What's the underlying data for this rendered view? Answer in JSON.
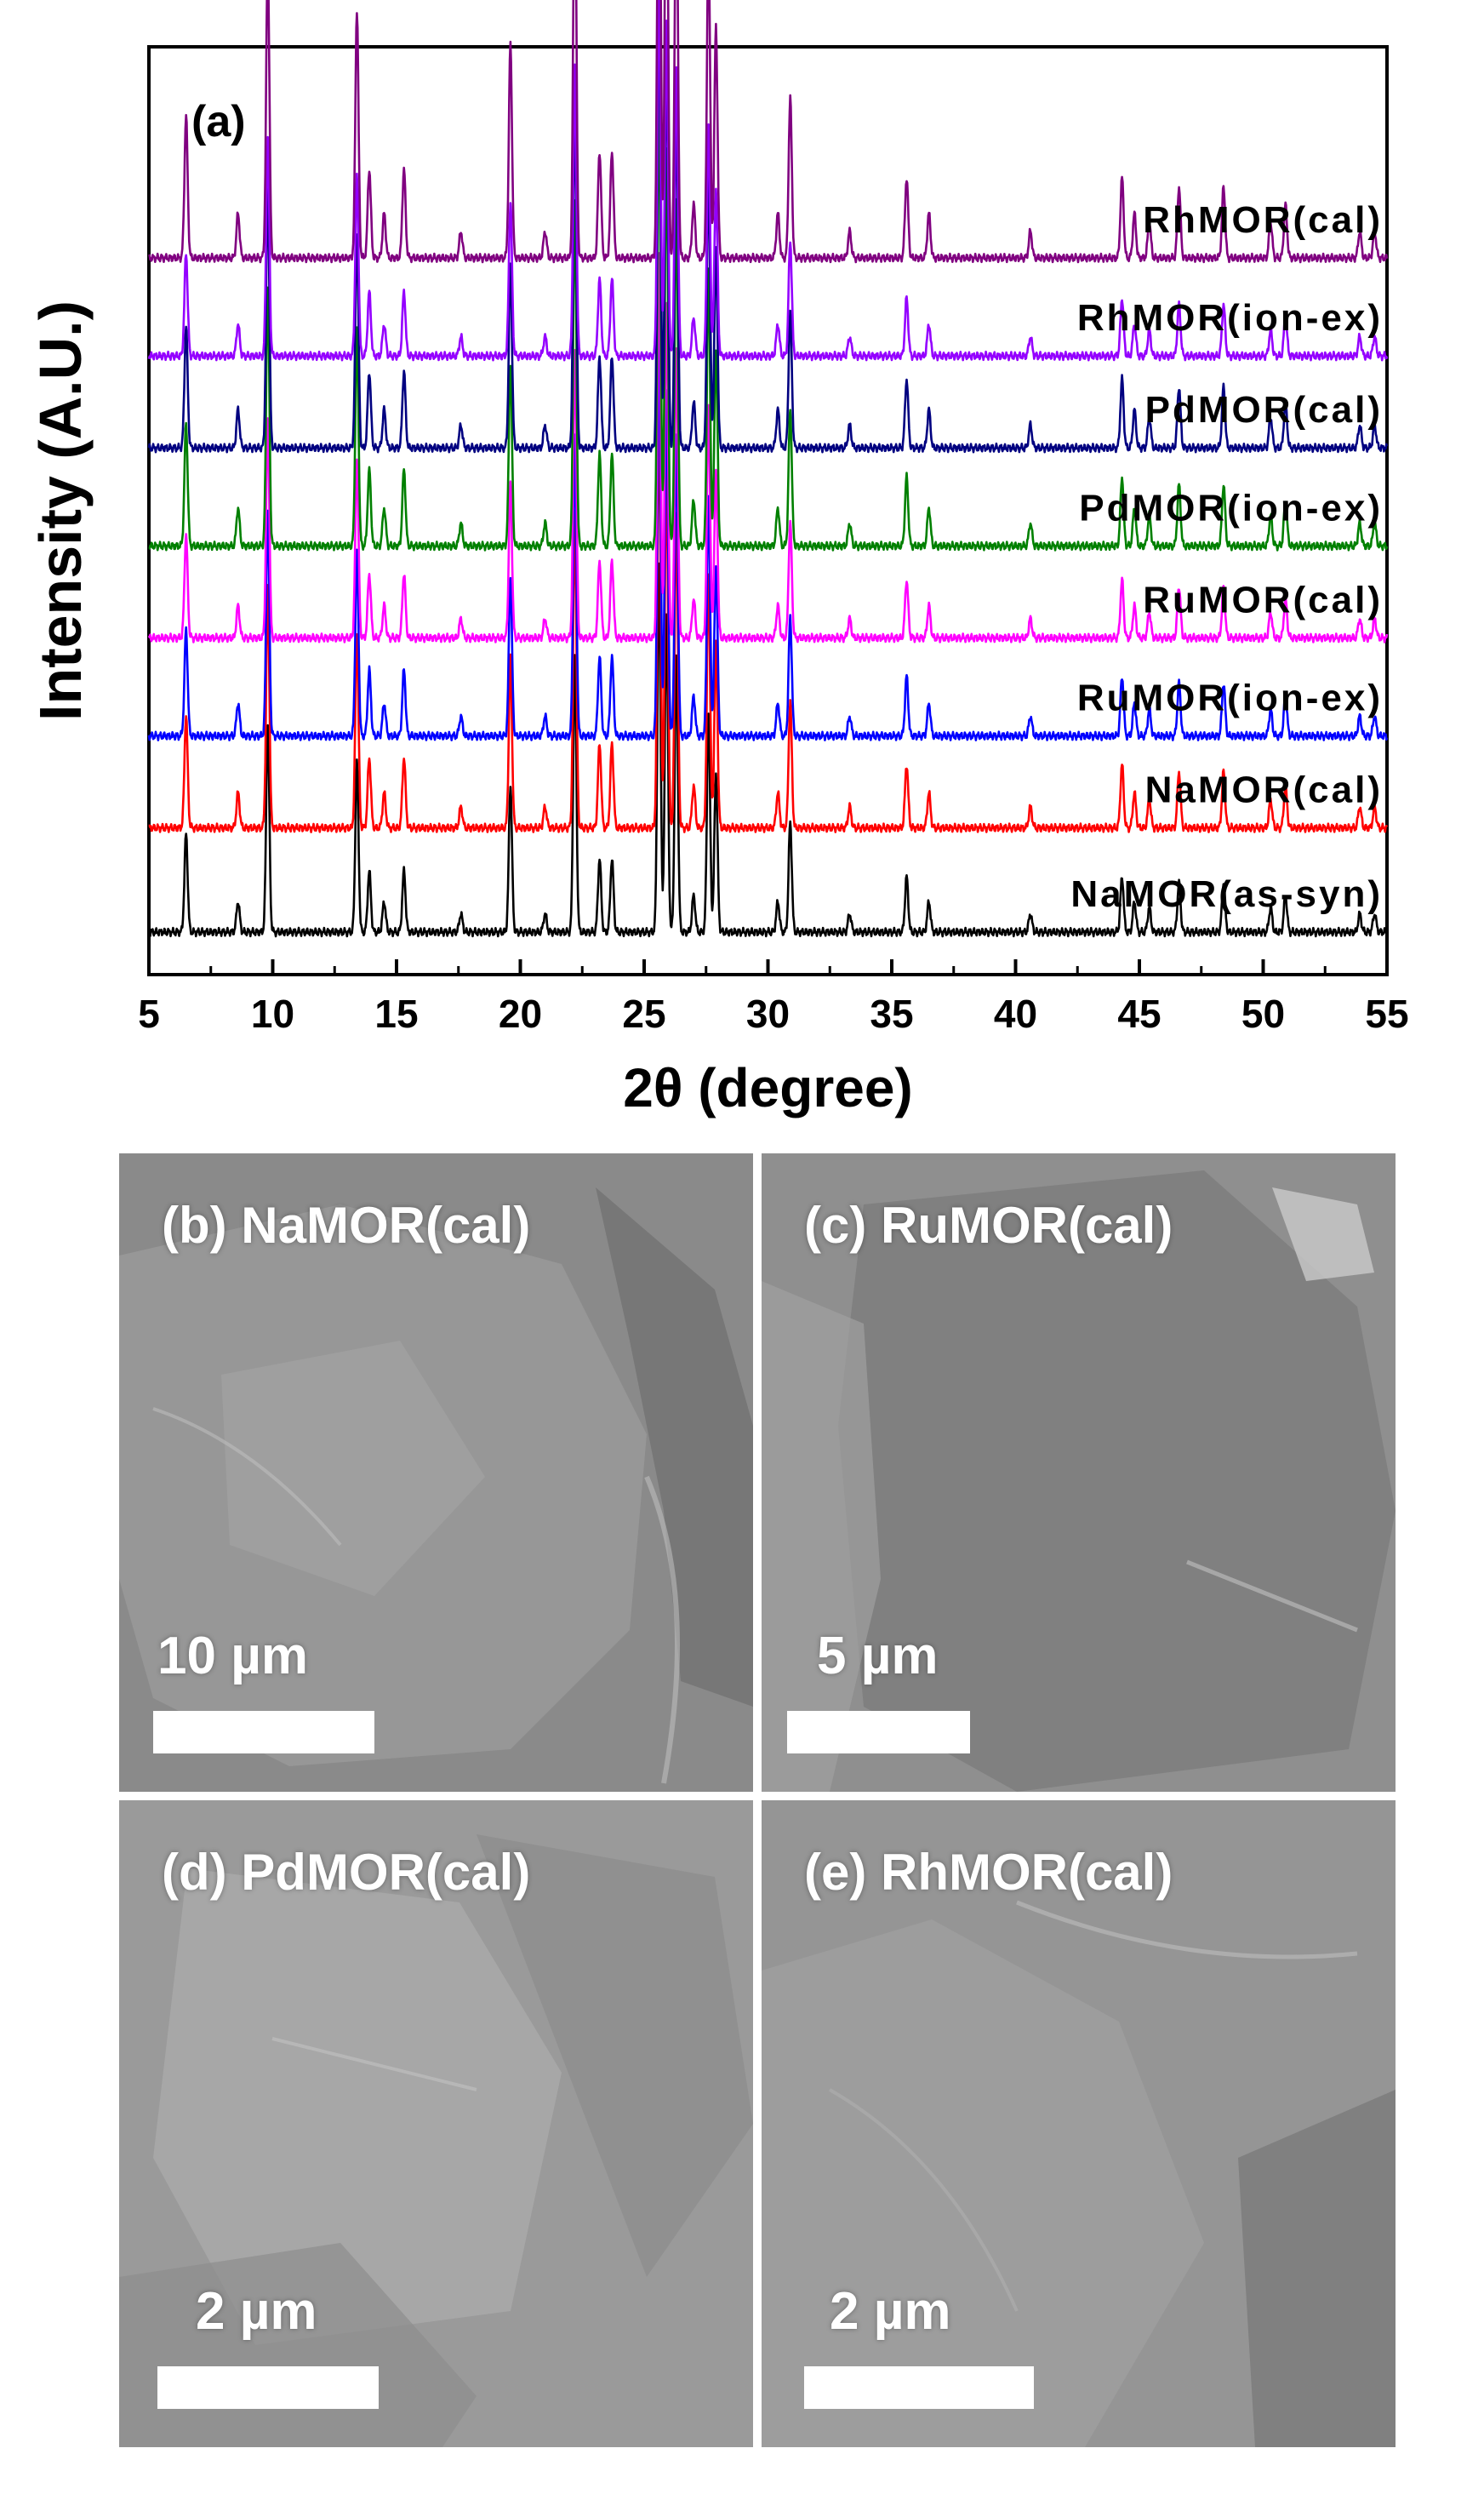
{
  "chart_data": {
    "type": "line",
    "panel_label": "(a)",
    "xlabel": "2θ (degree)",
    "ylabel": "Intensity (A.U.)",
    "xlim": [
      5,
      55
    ],
    "xticks": [
      5,
      10,
      15,
      20,
      25,
      30,
      35,
      40,
      45,
      50,
      55
    ],
    "grid": false,
    "series": [
      {
        "name": "NaMOR(as-syn)",
        "color": "#000000",
        "baseline": 0.0,
        "scale": 1.0
      },
      {
        "name": "NaMOR(cal)",
        "color": "#ff0000",
        "baseline": 0.17,
        "scale": 1.15
      },
      {
        "name": "RuMOR(ion-ex)",
        "color": "#0000ff",
        "baseline": 0.32,
        "scale": 1.08
      },
      {
        "name": "RuMOR(cal)",
        "color": "#ff00ff",
        "baseline": 0.48,
        "scale": 1.05
      },
      {
        "name": "PdMOR(ion-ex)",
        "color": "#008000",
        "baseline": 0.63,
        "scale": 1.25
      },
      {
        "name": "PdMOR(cal)",
        "color": "#000080",
        "baseline": 0.79,
        "scale": 1.25
      },
      {
        "name": "RhMOR(ion-ex)",
        "color": "#9400ff",
        "baseline": 0.94,
        "scale": 1.05
      },
      {
        "name": "RhMOR(cal)",
        "color": "#800080",
        "baseline": 1.1,
        "scale": 1.45
      }
    ],
    "peaks": [
      {
        "x": 6.5,
        "y": 0.16
      },
      {
        "x": 8.6,
        "y": 0.05
      },
      {
        "x": 9.8,
        "y": 0.34
      },
      {
        "x": 13.4,
        "y": 0.28
      },
      {
        "x": 13.9,
        "y": 0.1
      },
      {
        "x": 14.5,
        "y": 0.05
      },
      {
        "x": 15.3,
        "y": 0.1
      },
      {
        "x": 17.6,
        "y": 0.03
      },
      {
        "x": 19.6,
        "y": 0.24
      },
      {
        "x": 21.0,
        "y": 0.03
      },
      {
        "x": 22.2,
        "y": 0.45
      },
      {
        "x": 23.2,
        "y": 0.12
      },
      {
        "x": 23.7,
        "y": 0.12
      },
      {
        "x": 25.6,
        "y": 0.6
      },
      {
        "x": 25.9,
        "y": 0.52
      },
      {
        "x": 26.3,
        "y": 0.45
      },
      {
        "x": 27.0,
        "y": 0.06
      },
      {
        "x": 27.6,
        "y": 0.36
      },
      {
        "x": 27.9,
        "y": 0.26
      },
      {
        "x": 30.4,
        "y": 0.05
      },
      {
        "x": 30.9,
        "y": 0.18
      },
      {
        "x": 33.3,
        "y": 0.03
      },
      {
        "x": 35.6,
        "y": 0.09
      },
      {
        "x": 36.5,
        "y": 0.05
      },
      {
        "x": 40.6,
        "y": 0.03
      },
      {
        "x": 44.3,
        "y": 0.09
      },
      {
        "x": 44.8,
        "y": 0.05
      },
      {
        "x": 45.4,
        "y": 0.04
      },
      {
        "x": 46.6,
        "y": 0.08
      },
      {
        "x": 48.4,
        "y": 0.08
      },
      {
        "x": 50.3,
        "y": 0.04
      },
      {
        "x": 50.9,
        "y": 0.06
      },
      {
        "x": 53.9,
        "y": 0.03
      },
      {
        "x": 54.5,
        "y": 0.03
      }
    ]
  },
  "sem_panels": [
    {
      "label": "(b) NaMOR(cal)",
      "scale_text": "10 µm",
      "tone": "#8a8a8a"
    },
    {
      "label": "(c) RuMOR(cal)",
      "scale_text": "5 µm",
      "tone": "#8f8f8f"
    },
    {
      "label": "(d) PdMOR(cal)",
      "scale_text": "2 µm",
      "tone": "#9a9a9a"
    },
    {
      "label": "(e) RhMOR(cal)",
      "scale_text": "2 µm",
      "tone": "#959595"
    }
  ]
}
